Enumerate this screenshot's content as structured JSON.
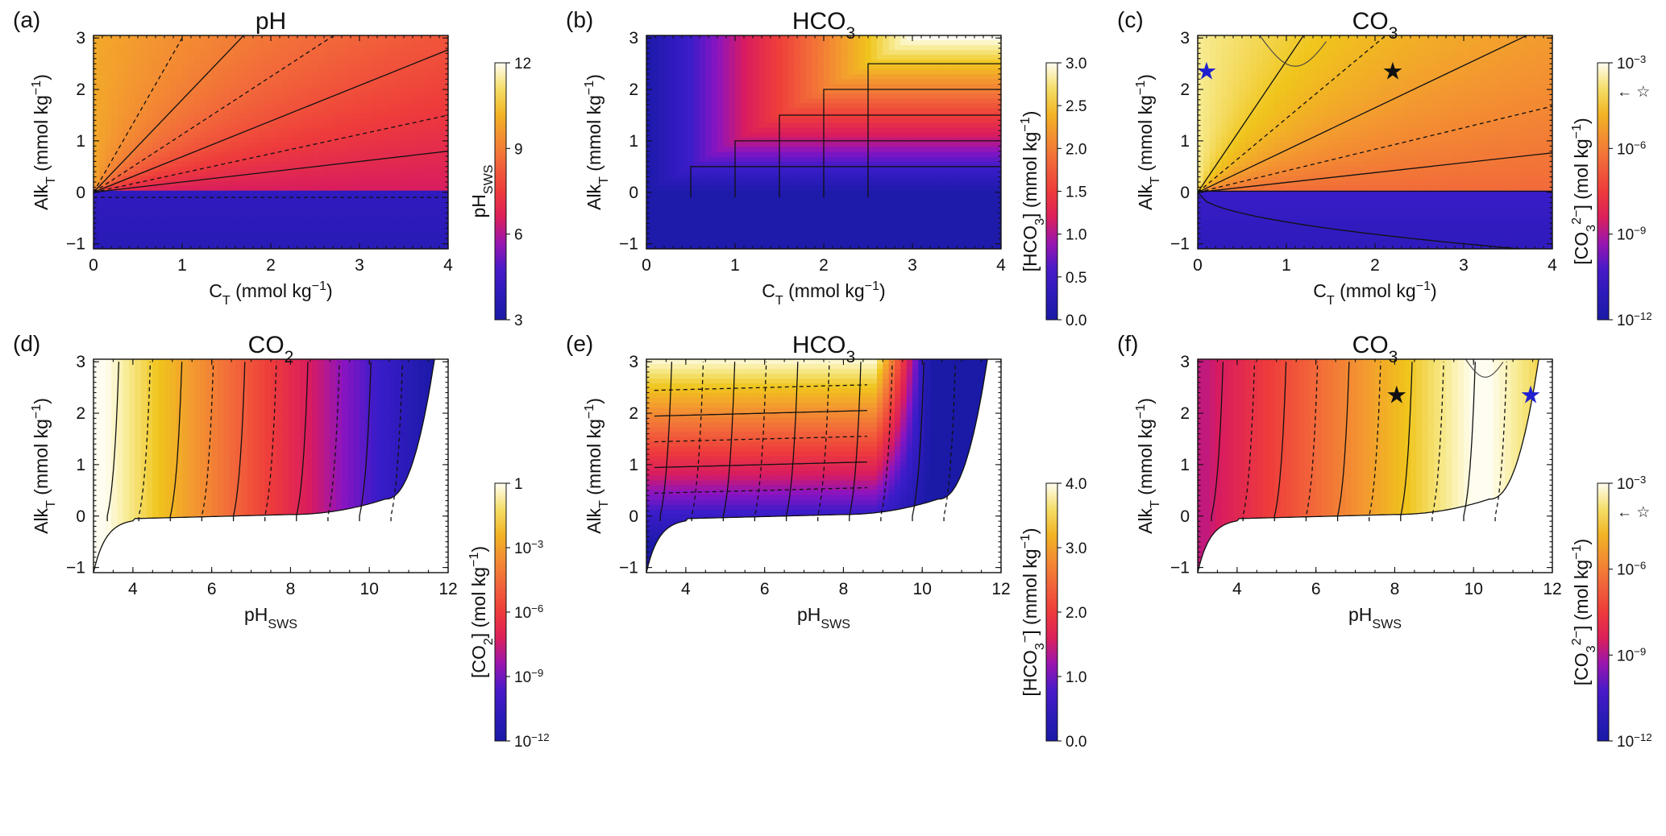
{
  "palette": {
    "stops": [
      [
        0.0,
        "#1a1aa6"
      ],
      [
        0.18,
        "#3a1cc9"
      ],
      [
        0.28,
        "#8a14c2"
      ],
      [
        0.38,
        "#d81b60"
      ],
      [
        0.5,
        "#ee3b3b"
      ],
      [
        0.62,
        "#f26a3a"
      ],
      [
        0.74,
        "#f39b2f"
      ],
      [
        0.84,
        "#f0c51c"
      ],
      [
        0.93,
        "#f7ea8e"
      ],
      [
        1.0,
        "#fffdf2"
      ]
    ]
  },
  "star_colors": {
    "black": "#111111",
    "blue": "#1f1fcf"
  },
  "chart_data": [
    {
      "panel": "(a)",
      "title": "pH",
      "type": "heatmap",
      "xlabel": "C",
      "xlabel_sub": "T",
      "xlabel_suffix": " (mmol kg",
      "xlabel_sup": "−1",
      "xlabel_end": ")",
      "ylabel": "Alk",
      "ylabel_sub": "T",
      "ylabel_suffix": " (mmol kg",
      "ylabel_sup": "−1",
      "ylabel_end": ")",
      "xlim": [
        0,
        4
      ],
      "ylim": [
        -1.1,
        3.05
      ],
      "xticks": [
        "0",
        "1",
        "2",
        "3",
        "4"
      ],
      "yticks": [
        "−1",
        "0",
        "1",
        "2",
        "3"
      ],
      "colorbar": {
        "label": "pH",
        "label_sub": "SWS",
        "label_pre": "",
        "label_post": "",
        "scale": "linear",
        "range": [
          3,
          12
        ],
        "ticks": [
          "3",
          "6",
          "9",
          "12"
        ]
      }
    },
    {
      "panel": "(b)",
      "title": "HCO",
      "title_sub": "3",
      "type": "heatmap",
      "xlabel": "C",
      "xlabel_sub": "T",
      "xlabel_suffix": " (mmol kg",
      "xlabel_sup": "−1",
      "xlabel_end": ")",
      "ylabel": "Alk",
      "ylabel_sub": "T",
      "ylabel_suffix": " (mmol kg",
      "ylabel_sup": "−1",
      "ylabel_end": ")",
      "xlim": [
        0,
        4
      ],
      "ylim": [
        -1.1,
        3.05
      ],
      "xticks": [
        "0",
        "1",
        "2",
        "3",
        "4"
      ],
      "yticks": [
        "−1",
        "0",
        "1",
        "2",
        "3"
      ],
      "contour_levels": [
        0.5,
        1.0,
        1.5,
        2.0,
        2.5
      ],
      "colorbar": {
        "label": "[HCO",
        "label_sub": "3",
        "label_post": "] (mmol kg",
        "label_sup": "−1",
        "label_end": ")",
        "scale": "linear",
        "range": [
          0,
          3
        ],
        "ticks": [
          "0.0",
          "0.5",
          "1.0",
          "1.5",
          "2.0",
          "2.5",
          "3.0"
        ]
      }
    },
    {
      "panel": "(c)",
      "title": "CO",
      "title_sub": "3",
      "type": "heatmap",
      "xlabel": "C",
      "xlabel_sub": "T",
      "xlabel_suffix": " (mmol kg",
      "xlabel_sup": "−1",
      "xlabel_end": ")",
      "ylabel": "Alk",
      "ylabel_sub": "T",
      "ylabel_suffix": " (mmol kg",
      "ylabel_sup": "−1",
      "ylabel_end": ")",
      "xlim": [
        0,
        4
      ],
      "ylim": [
        -1.1,
        3.05
      ],
      "xticks": [
        "0",
        "1",
        "2",
        "3",
        "4"
      ],
      "yticks": [
        "−1",
        "0",
        "1",
        "2",
        "3"
      ],
      "markers": [
        {
          "x": 0.1,
          "y": 2.35,
          "color": "blue"
        },
        {
          "x": 2.2,
          "y": 2.35,
          "color": "black"
        }
      ],
      "colorbar": {
        "label": "[CO",
        "label_sub": "3",
        "label_sup2": "2−",
        "label_post": "] (mol kg",
        "label_sup": "−1",
        "label_end": ")",
        "scale": "log",
        "range": [
          -12,
          -3
        ],
        "ticks": [
          "10",
          "10",
          "10",
          "10"
        ],
        "tick_exps": [
          "−12",
          "−9",
          "−6",
          "−3"
        ],
        "arrow_marker": "← ☆"
      }
    },
    {
      "panel": "(d)",
      "title": "CO",
      "title_sub": "2",
      "type": "heatmap",
      "xlabel": "pH",
      "xlabel_sub": "SWS",
      "xlabel_suffix": "",
      "xlabel_sup": "",
      "xlabel_end": "",
      "ylabel": "Alk",
      "ylabel_sub": "T",
      "ylabel_suffix": " (mmol kg",
      "ylabel_sup": "−1",
      "ylabel_end": ")",
      "xlim": [
        3,
        12
      ],
      "ylim": [
        -1.1,
        3.05
      ],
      "xticks": [
        "4",
        "6",
        "8",
        "10",
        "12"
      ],
      "yticks": [
        "−1",
        "0",
        "1",
        "2",
        "3"
      ],
      "colorbar": {
        "label": "[CO",
        "label_sub": "2",
        "label_post": "] (mol kg",
        "label_sup": "−1",
        "label_end": ")",
        "scale": "log",
        "range": [
          -12,
          0
        ],
        "ticks": [
          "10",
          "10",
          "10",
          "10",
          "1"
        ],
        "tick_exps": [
          "−12",
          "−9",
          "−6",
          "−3",
          ""
        ]
      }
    },
    {
      "panel": "(e)",
      "title": "HCO",
      "title_sub": "3",
      "type": "heatmap",
      "xlabel": "pH",
      "xlabel_sub": "SWS",
      "xlabel_suffix": "",
      "xlabel_sup": "",
      "xlabel_end": "",
      "ylabel": "Alk",
      "ylabel_sub": "T",
      "ylabel_suffix": " (mmol kg",
      "ylabel_sup": "−1",
      "ylabel_end": ")",
      "xlim": [
        3,
        12
      ],
      "ylim": [
        -1.1,
        3.05
      ],
      "xticks": [
        "4",
        "6",
        "8",
        "10",
        "12"
      ],
      "yticks": [
        "−1",
        "0",
        "1",
        "2",
        "3"
      ],
      "colorbar": {
        "label": "[HCO",
        "label_sub": "3",
        "label_sup2": "−",
        "label_post": "] (mmol kg",
        "label_sup": "−1",
        "label_end": ")",
        "scale": "linear",
        "range": [
          0,
          4
        ],
        "ticks": [
          "0.0",
          "1.0",
          "2.0",
          "3.0",
          "4.0"
        ]
      }
    },
    {
      "panel": "(f)",
      "title": "CO",
      "title_sub": "3",
      "type": "heatmap",
      "xlabel": "pH",
      "xlabel_sub": "SWS",
      "xlabel_suffix": "",
      "xlabel_sup": "",
      "xlabel_end": "",
      "ylabel": "Alk",
      "ylabel_sub": "T",
      "ylabel_suffix": " (mmol kg",
      "ylabel_sup": "−1",
      "ylabel_end": ")",
      "xlim": [
        3,
        12
      ],
      "ylim": [
        -1.1,
        3.05
      ],
      "xticks": [
        "4",
        "6",
        "8",
        "10",
        "12"
      ],
      "yticks": [
        "−1",
        "0",
        "1",
        "2",
        "3"
      ],
      "markers": [
        {
          "x": 8.05,
          "y": 2.35,
          "color": "black"
        },
        {
          "x": 11.45,
          "y": 2.35,
          "color": "blue"
        }
      ],
      "colorbar": {
        "label": "[CO",
        "label_sub": "3",
        "label_sup2": "2−",
        "label_post": "] (mol kg",
        "label_sup": "−1",
        "label_end": ")",
        "scale": "log",
        "range": [
          -12,
          -3
        ],
        "ticks": [
          "10",
          "10",
          "10",
          "10"
        ],
        "tick_exps": [
          "−12",
          "−9",
          "−6",
          "−3"
        ],
        "arrow_marker": "← ☆"
      }
    }
  ]
}
